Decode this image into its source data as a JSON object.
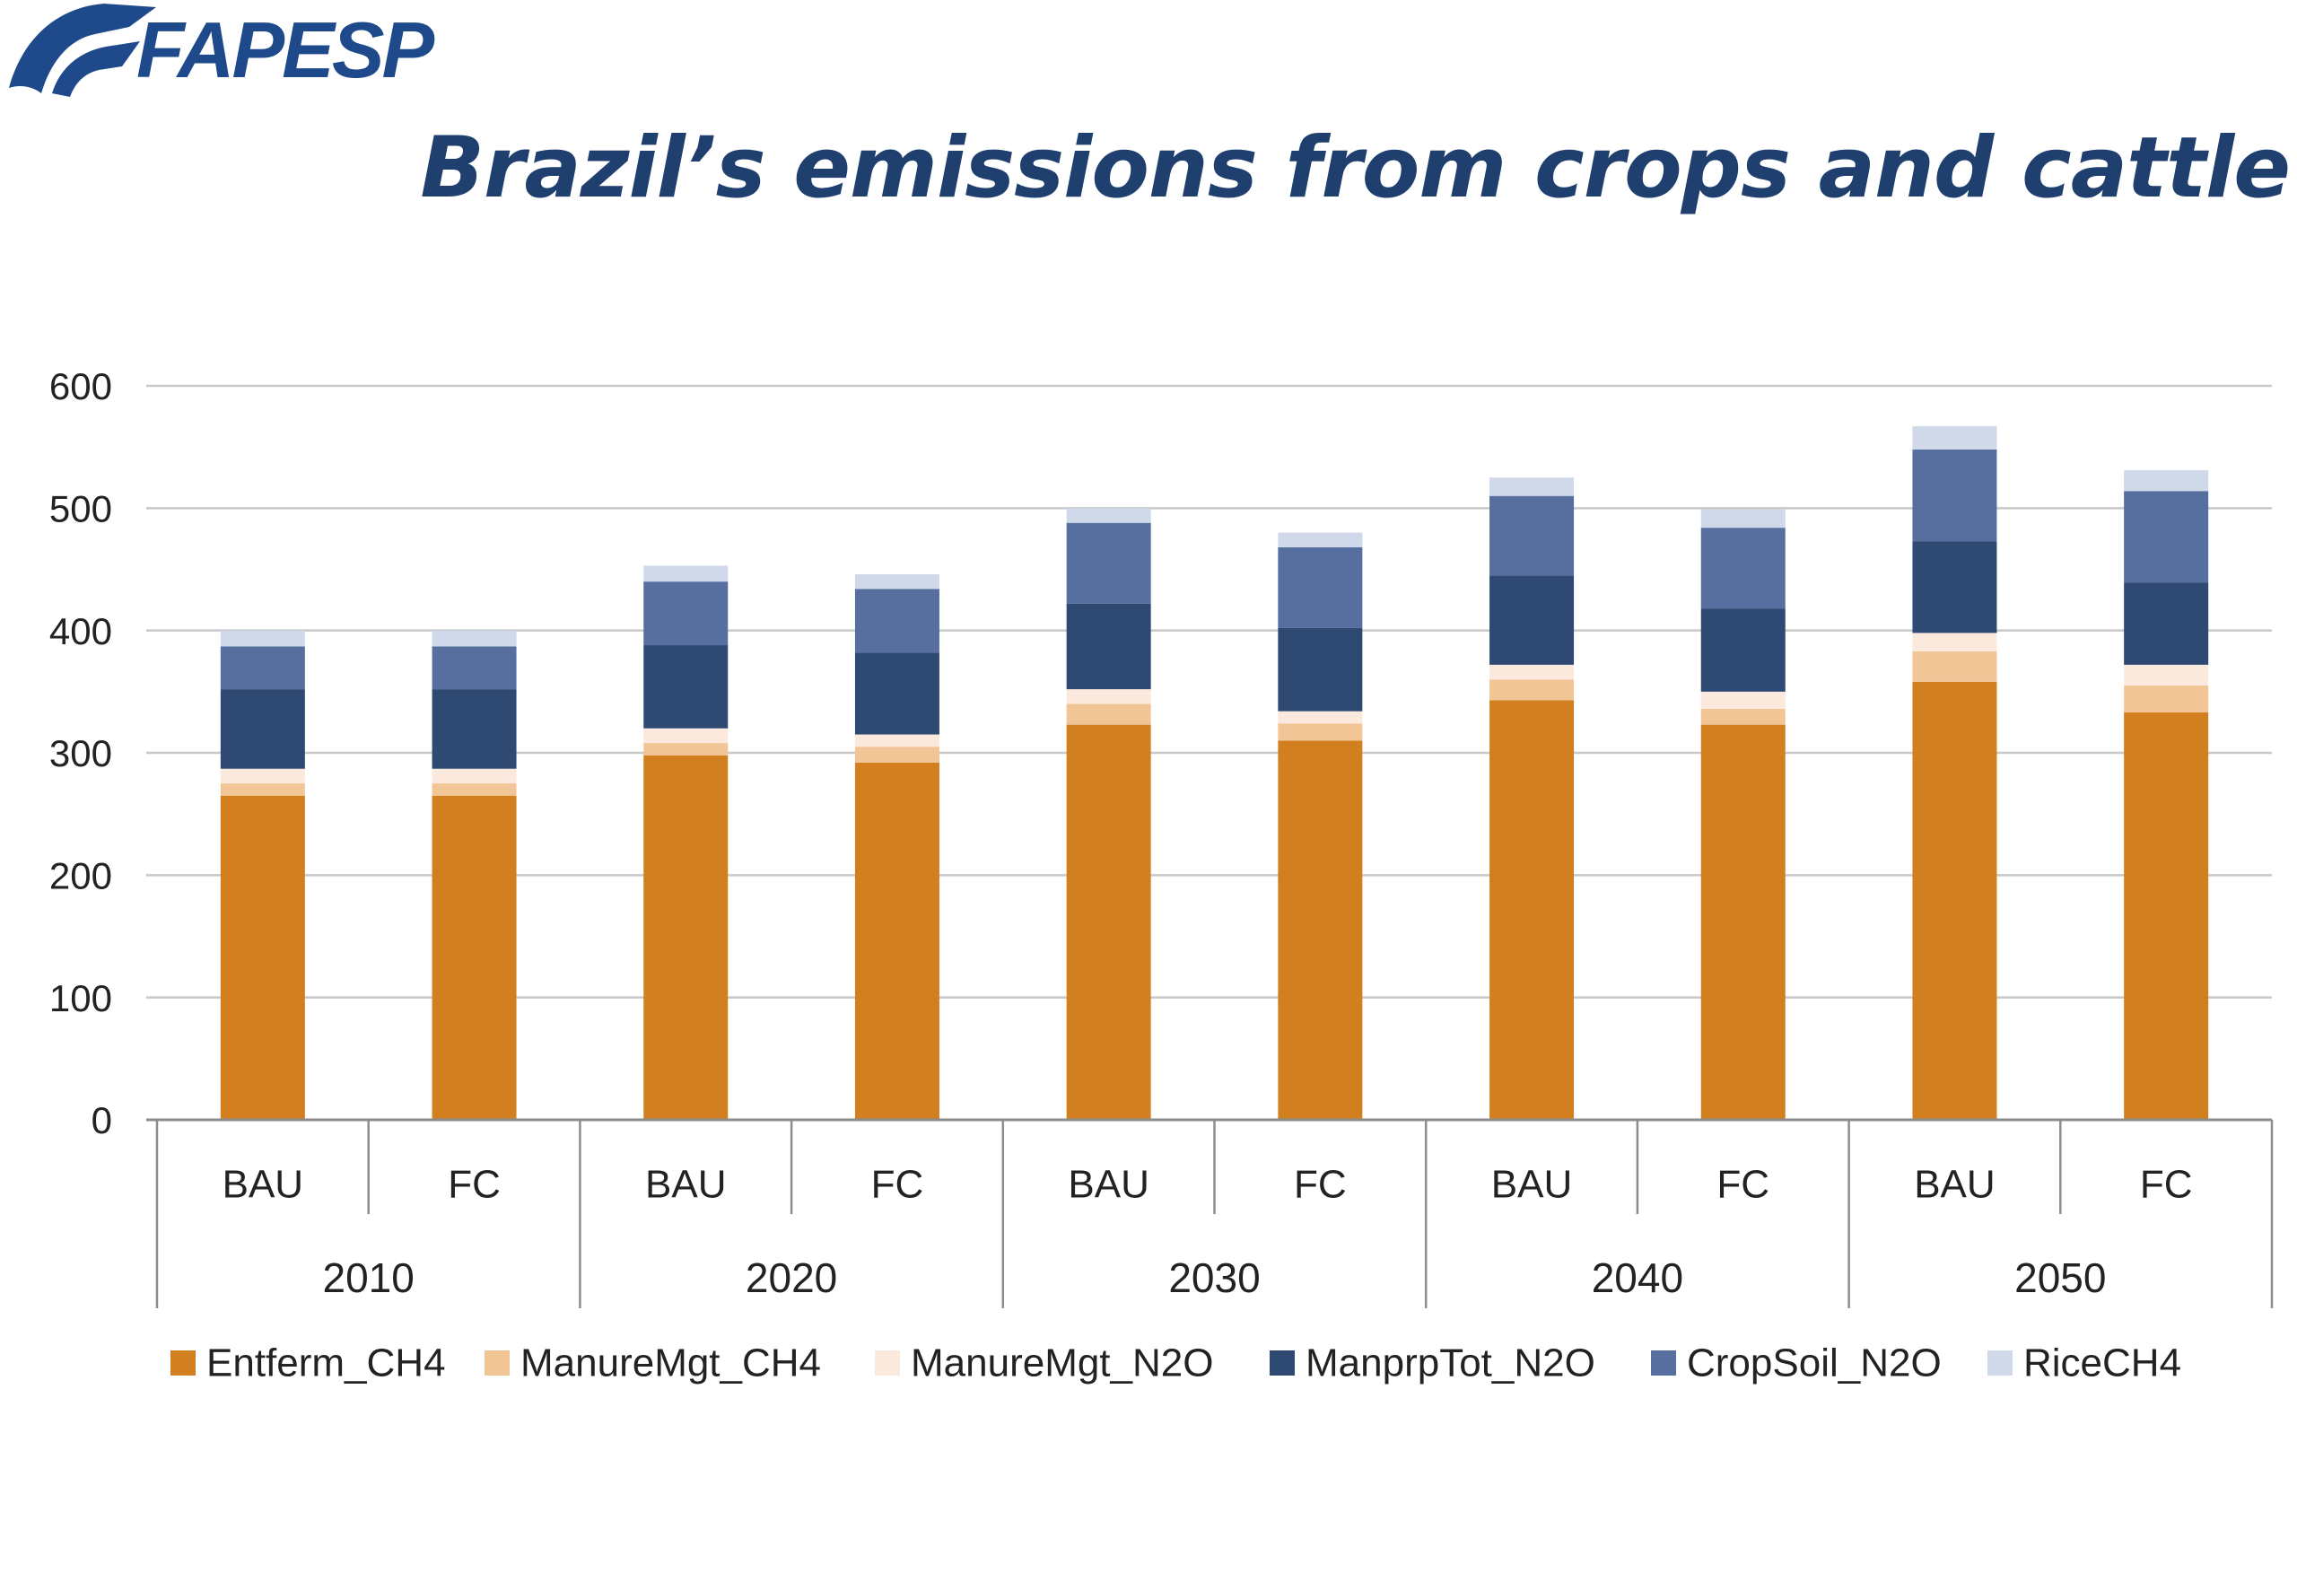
{
  "logo": {
    "text": "FAPESP",
    "color": "#1e4a8c"
  },
  "chart_data": {
    "type": "bar",
    "stacked": true,
    "title": "Brazil’s emissions from crops and cattle",
    "xlabel": "",
    "ylabel": "",
    "ylim": [
      0,
      600
    ],
    "yticks": [
      0,
      100,
      200,
      300,
      400,
      500,
      600
    ],
    "grid": true,
    "legend_position": "bottom",
    "groups": [
      "2010",
      "2020",
      "2030",
      "2040",
      "2050"
    ],
    "scenarios": [
      "BAU",
      "FC"
    ],
    "categories": [
      "BAU",
      "FC",
      "BAU",
      "FC",
      "BAU",
      "FC",
      "BAU",
      "FC",
      "BAU",
      "FC"
    ],
    "series": [
      {
        "name": "Entferm_CH4",
        "color": "#d27f20",
        "values": [
          265,
          265,
          298,
          292,
          323,
          310,
          343,
          323,
          358,
          333
        ]
      },
      {
        "name": "ManureMgt_CH4",
        "color": "#f1c596",
        "values": [
          10,
          10,
          10,
          13,
          17,
          14,
          17,
          13,
          25,
          22
        ]
      },
      {
        "name": "ManureMgt_N2O",
        "color": "#fbe9de",
        "values": [
          12,
          12,
          12,
          10,
          12,
          10,
          12,
          14,
          15,
          17
        ]
      },
      {
        "name": "ManprpTot_N2O",
        "color": "#2e4a72",
        "values": [
          65,
          65,
          68,
          67,
          70,
          68,
          73,
          68,
          75,
          67
        ]
      },
      {
        "name": "CropSoil_N2O",
        "color": "#566f9f",
        "values": [
          35,
          35,
          52,
          52,
          66,
          66,
          65,
          66,
          75,
          75
        ]
      },
      {
        "name": "RiceCH4",
        "color": "#cfd9ea",
        "values": [
          13,
          13,
          13,
          12,
          12,
          12,
          15,
          15,
          19,
          17
        ]
      }
    ],
    "colors": {
      "grid": "#c8c8c8",
      "axis": "#8c8c8c",
      "text": "#222222"
    }
  }
}
